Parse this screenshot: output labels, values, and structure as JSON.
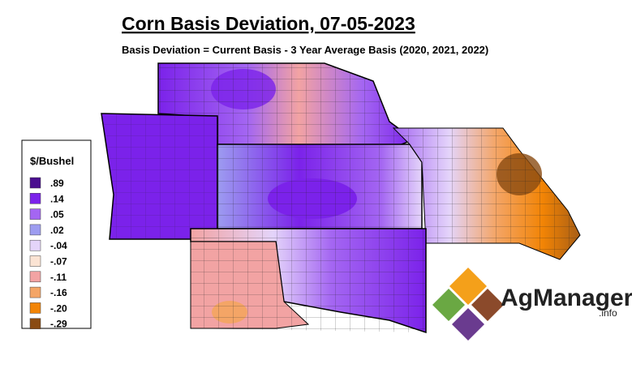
{
  "header": {
    "title": "Corn Basis Deviation, 07-05-2023",
    "subtitle": "Basis Deviation = Current Basis - 3 Year Average Basis (2020, 2021, 2022)"
  },
  "legend": {
    "title": "$/Bushel",
    "items": [
      {
        "label": ".89",
        "color": "#4a0e8f"
      },
      {
        "label": ".14",
        "color": "#7b22ea"
      },
      {
        "label": ".05",
        "color": "#a466f2"
      },
      {
        "label": ".02",
        "color": "#9d9cf0"
      },
      {
        "label": "-.04",
        "color": "#e4d4fa"
      },
      {
        "label": "-.07",
        "color": "#fbe3d3"
      },
      {
        "label": "-.11",
        "color": "#f2a3a3"
      },
      {
        "label": "-.16",
        "color": "#f4a566"
      },
      {
        "label": "-.20",
        "color": "#f28405"
      },
      {
        "label": "-.29",
        "color": "#8a4b12"
      }
    ]
  },
  "logo": {
    "name": "AgManager",
    "suffix": ".info"
  }
}
